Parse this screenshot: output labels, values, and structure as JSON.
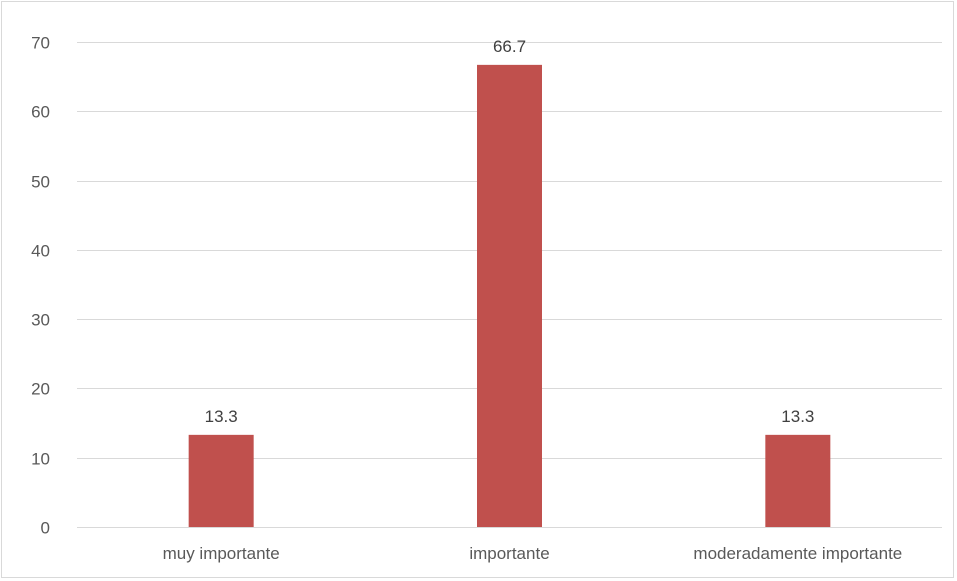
{
  "chart_data": {
    "type": "bar",
    "categories": [
      "muy importante",
      "importante",
      "moderadamente importante"
    ],
    "values": [
      13.3,
      66.7,
      13.3
    ],
    "data_labels": [
      "13.3",
      "66.7",
      "13.3"
    ],
    "ylim": [
      0,
      70
    ],
    "yticks": [
      0,
      10,
      20,
      30,
      40,
      50,
      60,
      70
    ],
    "ytick_labels": [
      "0",
      "10",
      "20",
      "30",
      "40",
      "50",
      "60",
      "70"
    ],
    "grid": true,
    "legend": "none",
    "bar_color": "#c0504d",
    "grid_color": "#d9d9d9"
  }
}
